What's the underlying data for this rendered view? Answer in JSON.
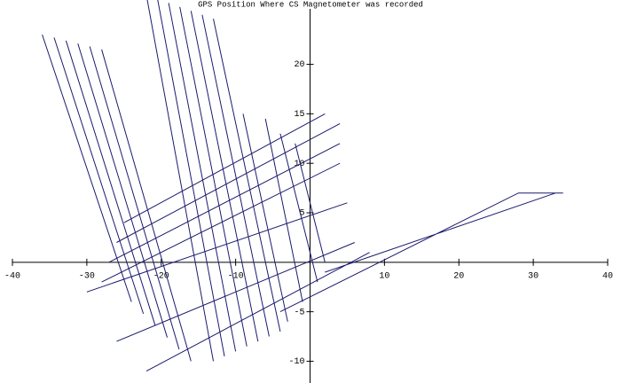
{
  "chart_data": {
    "type": "line",
    "title": "GPS Position Where CS Magnetometer was recorded",
    "color": "#1a1a6e",
    "x": [
      -36,
      -24,
      null,
      -34.4,
      -22.4,
      null,
      -32.8,
      -20.8,
      null,
      -31.2,
      -19.2,
      null,
      -29.6,
      -17.6,
      null,
      -28,
      -16,
      null,
      -22,
      -13,
      null,
      -20.5,
      -11.5,
      null,
      -19,
      -10,
      null,
      -17.5,
      -8.5,
      null,
      -16,
      -7,
      null,
      -14.5,
      -5.5,
      null,
      -13,
      -4,
      null,
      -9,
      -3,
      null,
      -6,
      -1,
      null,
      -4,
      1,
      null,
      -2,
      2,
      null,
      -28,
      4,
      null,
      -27,
      4,
      null,
      -26,
      4,
      null,
      -25,
      2,
      null,
      -30,
      5,
      null,
      -26,
      6,
      null,
      -22,
      8,
      null,
      -4,
      28,
      34,
      null,
      2,
      33
    ],
    "values": [
      23,
      -4,
      null,
      22.7,
      -5.2,
      null,
      22.4,
      -6.4,
      null,
      22.1,
      -7.6,
      null,
      21.8,
      -8.8,
      null,
      21.5,
      -10,
      null,
      27,
      -10,
      null,
      26.6,
      -9.5,
      null,
      26.2,
      -9,
      null,
      25.8,
      -8.5,
      null,
      25.4,
      -8,
      null,
      25,
      -7.5,
      null,
      24.6,
      -7,
      null,
      15,
      -6,
      null,
      14.5,
      -4,
      null,
      13,
      -2,
      null,
      12,
      0,
      null,
      -2,
      10,
      null,
      0,
      12,
      null,
      2,
      14,
      null,
      4,
      15,
      null,
      -3,
      6,
      null,
      -8,
      2,
      null,
      -11,
      1,
      null,
      -5,
      7,
      7,
      null,
      -1,
      7
    ],
    "xlim": [
      -40,
      40
    ],
    "ylim": [
      -12.2,
      26.5
    ],
    "xticks": [
      -40,
      -30,
      -20,
      -10,
      10,
      20,
      30,
      40
    ],
    "yticks": [
      -10,
      -5,
      5,
      10,
      15,
      20
    ]
  }
}
